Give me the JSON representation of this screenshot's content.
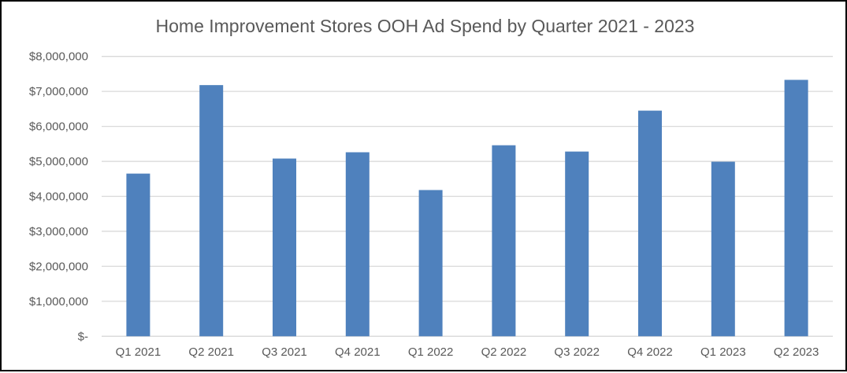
{
  "chart_data": {
    "type": "bar",
    "title": "Home Improvement Stores OOH Ad Spend by Quarter 2021 - 2023",
    "categories": [
      "Q1 2021",
      "Q2 2021",
      "Q3 2021",
      "Q4 2021",
      "Q1 2022",
      "Q2 2022",
      "Q3 2022",
      "Q4 2022",
      "Q1 2023",
      "Q2 2023"
    ],
    "values": [
      4650000,
      7180000,
      5080000,
      5260000,
      4180000,
      5460000,
      5280000,
      6450000,
      4990000,
      7330000
    ],
    "ylim": [
      0,
      8000000
    ],
    "yticks": [
      0,
      1000000,
      2000000,
      3000000,
      4000000,
      5000000,
      6000000,
      7000000,
      8000000
    ],
    "ytick_labels": [
      "$-",
      "$1,000,000",
      "$2,000,000",
      "$3,000,000",
      "$4,000,000",
      "$5,000,000",
      "$6,000,000",
      "$7,000,000",
      "$8,000,000"
    ],
    "grid": true,
    "legend": "none",
    "bar_color": "#4f81bd"
  }
}
